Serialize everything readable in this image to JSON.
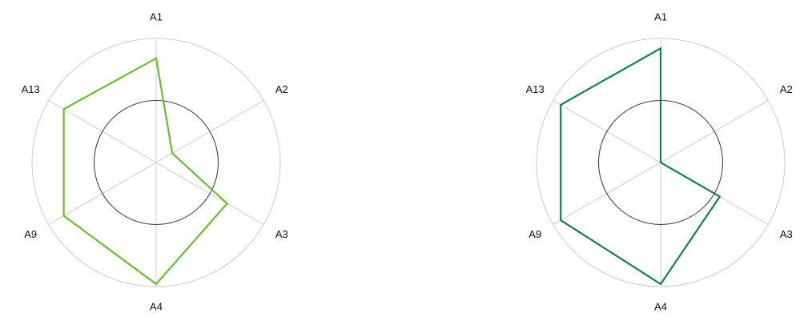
{
  "chart_data": [
    {
      "type": "radar",
      "axes": [
        "A1",
        "A2",
        "A3",
        "A4",
        "A9",
        "A13"
      ],
      "values": [
        0.84,
        0.15,
        0.66,
        0.98,
        0.86,
        0.86
      ],
      "rmax": 1.0,
      "reference_ring": 0.5,
      "color": "#6abf2a"
    },
    {
      "type": "radar",
      "axes": [
        "A1",
        "A2",
        "A3",
        "A4",
        "A9",
        "A13"
      ],
      "values": [
        0.92,
        0.0,
        0.55,
        0.98,
        0.93,
        0.93
      ],
      "rmax": 1.0,
      "reference_ring": 0.5,
      "color": "#11844a"
    }
  ]
}
